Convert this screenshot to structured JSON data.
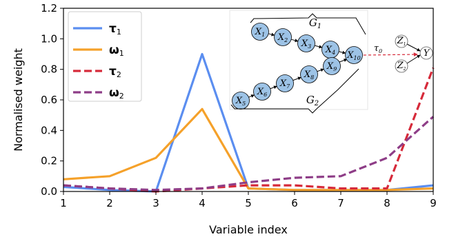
{
  "chart_data": {
    "type": "line",
    "xlabel": "Variable index",
    "ylabel": "Normalised weight",
    "xlim": [
      1,
      9
    ],
    "ylim": [
      0,
      1.2
    ],
    "x": [
      1,
      2,
      3,
      4,
      5,
      6,
      7,
      8,
      9
    ],
    "xticks": [
      "1",
      "2",
      "3",
      "4",
      "5",
      "6",
      "7",
      "8",
      "9"
    ],
    "yticks": [
      "0.0",
      "0.2",
      "0.4",
      "0.6",
      "0.8",
      "1.0",
      "1.2"
    ],
    "grid": false,
    "legend_position": "top-left",
    "series": [
      {
        "name": "τ",
        "sub": "1",
        "color": "#5b8ef0",
        "dash": "solid",
        "values": [
          0.03,
          0.01,
          0.0,
          0.9,
          0.02,
          0.01,
          0.01,
          0.01,
          0.04
        ]
      },
      {
        "name": "ω",
        "sub": "1",
        "color": "#f5a12a",
        "dash": "solid",
        "values": [
          0.08,
          0.1,
          0.22,
          0.54,
          0.02,
          0.01,
          0.01,
          0.01,
          0.02
        ]
      },
      {
        "name": "τ",
        "sub": "2",
        "color": "#d62a3a",
        "dash": "dashed",
        "values": [
          0.04,
          0.02,
          0.0,
          0.02,
          0.04,
          0.04,
          0.02,
          0.02,
          0.81
        ]
      },
      {
        "name": "ω",
        "sub": "2",
        "color": "#8e3d87",
        "dash": "dashed",
        "values": [
          0.04,
          0.02,
          0.01,
          0.02,
          0.06,
          0.09,
          0.1,
          0.22,
          0.49
        ]
      }
    ],
    "inset_diagram": {
      "group_top": {
        "letter": "G",
        "sub": "1"
      },
      "group_bottom": {
        "letter": "G",
        "sub": "2"
      },
      "top_chain": [
        {
          "letter": "X",
          "sub": "1"
        },
        {
          "letter": "X",
          "sub": "2"
        },
        {
          "letter": "X",
          "sub": "3"
        },
        {
          "letter": "X",
          "sub": "4"
        },
        {
          "letter": "X",
          "sub": "10"
        }
      ],
      "bottom_chain": [
        {
          "letter": "X",
          "sub": "5"
        },
        {
          "letter": "X",
          "sub": "6"
        },
        {
          "letter": "X",
          "sub": "7"
        },
        {
          "letter": "X",
          "sub": "8"
        },
        {
          "letter": "X",
          "sub": "9"
        }
      ],
      "edge_label": {
        "letter": "τ",
        "sub": "0"
      },
      "z_nodes": [
        {
          "letter": "Z",
          "sub": "1"
        },
        {
          "letter": "Z",
          "sub": "2"
        }
      ],
      "outcome": {
        "letter": "Y"
      },
      "node_fill": "#9dc3e6",
      "edge_color": "#d62a3a"
    }
  }
}
